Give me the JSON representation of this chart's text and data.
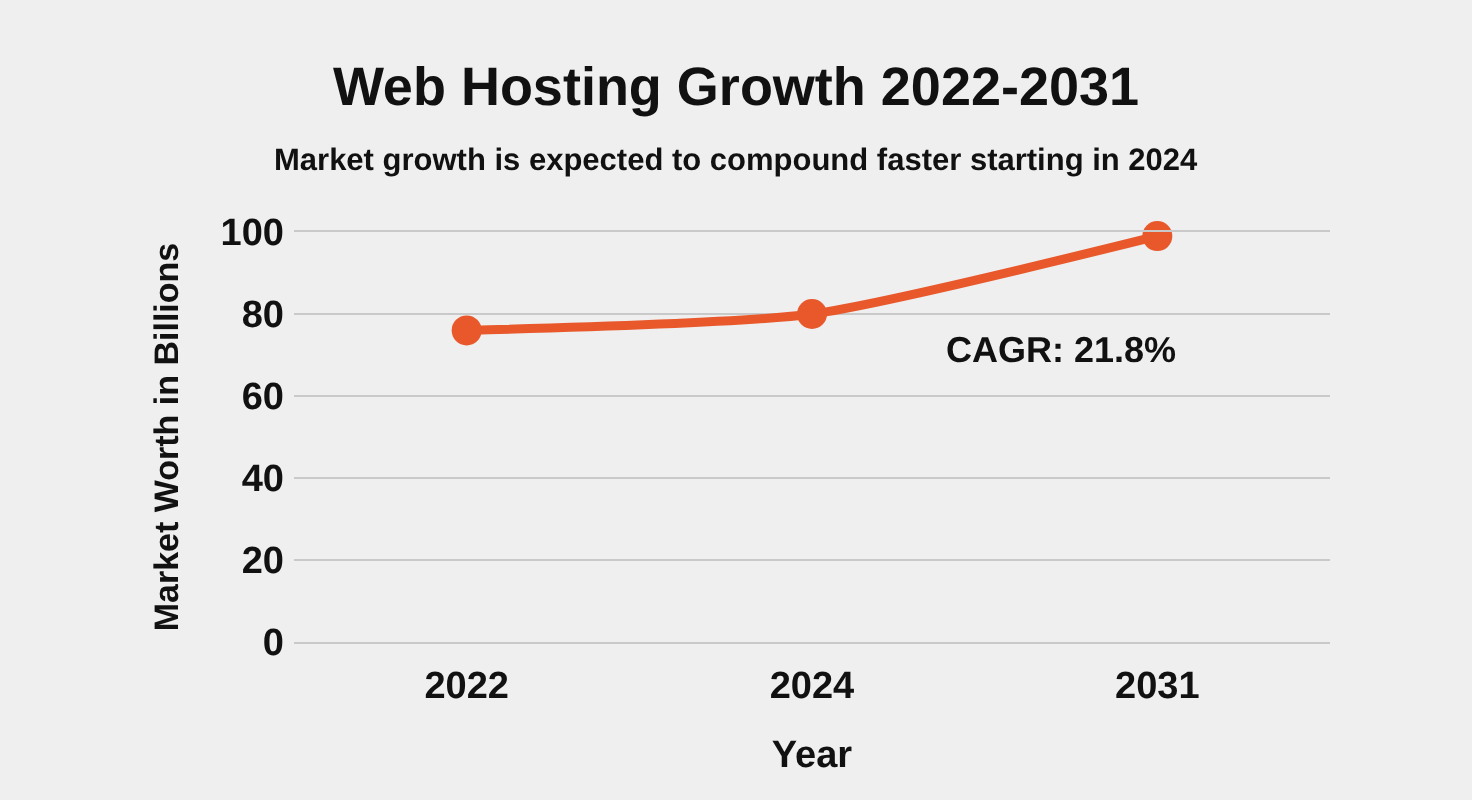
{
  "chart_data": {
    "type": "line",
    "title": "Web Hosting Growth 2022-2031",
    "subtitle": "Market growth is expected to compound faster starting in 2024",
    "xlabel": "Year",
    "ylabel": "Market Worth in Billions",
    "categories": [
      "2022",
      "2024",
      "2031"
    ],
    "series": [
      {
        "color": "#e8582b",
        "values": [
          76,
          80,
          99
        ]
      }
    ],
    "ylim": [
      0,
      100
    ],
    "yticks": [
      0,
      20,
      40,
      60,
      80,
      100
    ],
    "grid": "y",
    "marker": "circle",
    "line_style": "solid",
    "annotations": [
      "CAGR: 21.8%"
    ]
  }
}
